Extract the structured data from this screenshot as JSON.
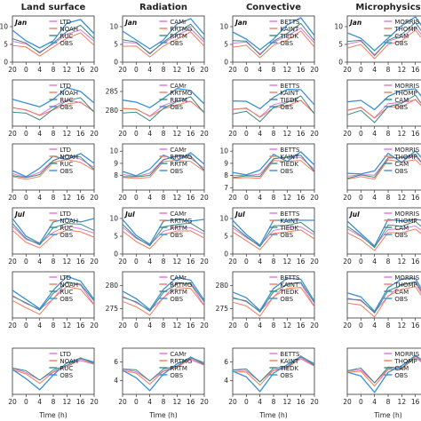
{
  "chart_data": {
    "type": "line",
    "columns": [
      "Land surface",
      "Radiation",
      "Convective",
      "Microphysics"
    ],
    "x_ticks": [
      "20",
      "0",
      "4",
      "8",
      "12",
      "16",
      "20"
    ],
    "xlabel": "Time (h)",
    "rows": [
      {
        "period": "Jan",
        "yticks": [
          [
            "0",
            "5",
            "10"
          ],
          [
            "0",
            "5",
            "10"
          ],
          [
            "0",
            "5",
            "10"
          ],
          [
            "0",
            "5",
            "10"
          ]
        ],
        "ylim": [
          0,
          13
        ]
      },
      {
        "period": "",
        "yticks": [
          [],
          [
            "280",
            "285"
          ],
          [],
          []
        ],
        "ylim": [
          276,
          288
        ]
      },
      {
        "period": "",
        "yticks": [
          [],
          [
            "8",
            "9",
            "10"
          ],
          [
            "7",
            "8",
            "9",
            "10"
          ],
          []
        ],
        "ylim": [
          6.8,
          10.6
        ]
      },
      {
        "period": "Jul",
        "yticks": [
          [],
          [
            "0",
            "5",
            "10"
          ],
          [
            "0",
            "5",
            "10"
          ],
          []
        ],
        "ylim": [
          0,
          13
        ]
      },
      {
        "period": "",
        "yticks": [
          [],
          [
            "275",
            "280"
          ],
          [
            "275",
            "280"
          ],
          []
        ],
        "ylim": [
          273,
          283
        ]
      },
      {
        "period": "",
        "yticks": [
          [],
          [
            "4",
            "6"
          ],
          [
            "4",
            "6"
          ],
          []
        ],
        "ylim": [
          2.5,
          7.5
        ]
      }
    ],
    "legends": [
      [
        "LTD",
        "NOAH",
        "RUC",
        "OBS"
      ],
      [
        "CAMr",
        "RRTMG",
        "RRTM",
        "OBS"
      ],
      [
        "BETTS",
        "KAINT",
        "TIEDK",
        "OBS"
      ],
      [
        "MORRIS",
        "THOMP",
        "CAM",
        "OBS"
      ]
    ],
    "colors": {
      "ctl": "#3b8a80",
      "exp1": "#d679d0",
      "exp2": "#f07d5c",
      "obs": "#3a8fd6"
    },
    "series": [
      {
        "panel": [
          0,
          0
        ],
        "x": [
          0,
          4,
          8,
          12,
          16,
          20,
          24
        ],
        "obs": [
          9,
          6,
          4,
          6,
          11,
          12,
          8
        ],
        "s1": [
          6,
          5,
          3,
          5,
          8,
          9,
          6
        ],
        "s2": [
          5,
          4,
          2,
          4,
          7,
          8,
          5
        ],
        "s3": [
          7,
          5,
          3,
          5,
          9,
          10,
          7
        ]
      },
      {
        "panel": [
          1,
          0
        ],
        "x": [
          0,
          4,
          8,
          12,
          16,
          20,
          24
        ],
        "obs": [
          283,
          282,
          281,
          283,
          286,
          285,
          282
        ],
        "s1": [
          281,
          280,
          279,
          281,
          283,
          282,
          280
        ],
        "s2": [
          281,
          280,
          279,
          280,
          282,
          282,
          280
        ],
        "s3": [
          280,
          279,
          278,
          280,
          283,
          283,
          280
        ]
      },
      {
        "panel": [
          2,
          0
        ],
        "x": [
          0,
          4,
          8,
          12,
          16,
          20,
          24
        ],
        "obs": [
          8.4,
          7.9,
          8.6,
          9.6,
          9.3,
          9.8,
          9.0
        ],
        "s1": [
          8.2,
          7.8,
          8.3,
          9.2,
          9.7,
          9.3,
          8.7
        ],
        "s2": [
          8.0,
          7.6,
          8.0,
          9.0,
          9.4,
          9.0,
          8.5
        ],
        "s3": [
          8.1,
          7.7,
          8.2,
          9.1,
          9.8,
          9.4,
          8.6
        ]
      },
      {
        "panel": [
          3,
          0
        ],
        "x": [
          0,
          4,
          8,
          12,
          16,
          20,
          24
        ],
        "obs": [
          10,
          5,
          3,
          9,
          10,
          9,
          10
        ],
        "s1": [
          8,
          4,
          3,
          6,
          8,
          7,
          6
        ],
        "s2": [
          7,
          3,
          2,
          5,
          7,
          6,
          5
        ],
        "s3": [
          9,
          4,
          3,
          7,
          9,
          8,
          7
        ]
      },
      {
        "panel": [
          4,
          0
        ],
        "x": [
          0,
          4,
          8,
          12,
          16,
          20,
          24
        ],
        "obs": [
          279,
          277,
          275,
          279,
          282,
          281,
          277
        ],
        "s1": [
          278,
          276,
          275,
          277,
          281,
          280,
          276
        ],
        "s2": [
          277,
          275,
          274,
          277,
          280,
          279,
          276
        ],
        "s3": [
          278,
          276,
          275,
          278,
          281,
          280,
          277
        ]
      },
      {
        "panel": [
          5,
          0
        ],
        "x": [
          0,
          4,
          8,
          12,
          16,
          20,
          24
        ],
        "obs": [
          5.2,
          4.2,
          3.0,
          4.6,
          5.9,
          6.4,
          6.0
        ],
        "s1": [
          5.4,
          4.8,
          4.1,
          4.9,
          5.7,
          6.1,
          5.8
        ],
        "s2": [
          5.3,
          4.6,
          3.8,
          4.8,
          5.6,
          6.2,
          5.9
        ],
        "s3": [
          5.5,
          4.9,
          4.2,
          5.0,
          5.8,
          6.3,
          6.0
        ]
      }
    ]
  }
}
